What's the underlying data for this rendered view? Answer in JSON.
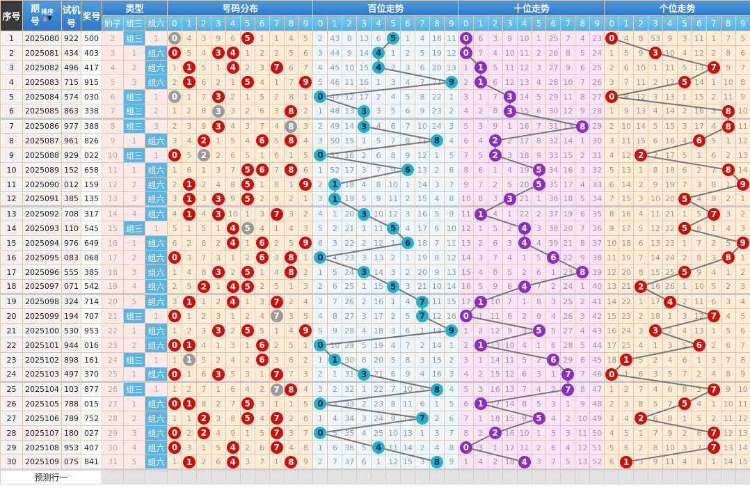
{
  "header": {
    "seq": "序号",
    "issue_1": "期",
    "issue_2": "号",
    "sort": "排序",
    "trial_1": "试机",
    "trial_2": "号",
    "prize": "奖号",
    "type": "类型",
    "type_sub": [
      "豹子",
      "组三",
      "组六"
    ],
    "groups": [
      "号码分布",
      "百位走势",
      "十位走势",
      "个位走势"
    ],
    "digits": [
      "0",
      "1",
      "2",
      "3",
      "4",
      "5",
      "6",
      "7",
      "8",
      "9"
    ]
  },
  "rows": [
    {
      "seq": "1",
      "issue": "2025080",
      "trial": "922",
      "prize": "500"
    },
    {
      "seq": "2",
      "issue": "2025081",
      "trial": "434",
      "prize": "403"
    },
    {
      "seq": "3",
      "issue": "2025082",
      "trial": "496",
      "prize": "417"
    },
    {
      "seq": "4",
      "issue": "2025083",
      "trial": "715",
      "prize": "915"
    },
    {
      "seq": "5",
      "issue": "2025084",
      "trial": "574",
      "prize": "030"
    },
    {
      "seq": "6",
      "issue": "2025085",
      "trial": "863",
      "prize": "338"
    },
    {
      "seq": "7",
      "issue": "2025086",
      "trial": "977",
      "prize": "388"
    },
    {
      "seq": "8",
      "issue": "2025087",
      "trial": "961",
      "prize": "826"
    },
    {
      "seq": "9",
      "issue": "2025088",
      "trial": "929",
      "prize": "022"
    },
    {
      "seq": "10",
      "issue": "2025089",
      "trial": "152",
      "prize": "658"
    },
    {
      "seq": "11",
      "issue": "2025090",
      "trial": "012",
      "prize": "159"
    },
    {
      "seq": "12",
      "issue": "2025091",
      "trial": "385",
      "prize": "135"
    },
    {
      "seq": "13",
      "issue": "2025092",
      "trial": "708",
      "prize": "317"
    },
    {
      "seq": "14",
      "issue": "2025093",
      "trial": "110",
      "prize": "545"
    },
    {
      "seq": "15",
      "issue": "2025094",
      "trial": "976",
      "prize": "649"
    },
    {
      "seq": "16",
      "issue": "2025095",
      "trial": "083",
      "prize": "068"
    },
    {
      "seq": "17",
      "issue": "2025096",
      "trial": "555",
      "prize": "385"
    },
    {
      "seq": "18",
      "issue": "2025097",
      "trial": "071",
      "prize": "542"
    },
    {
      "seq": "19",
      "issue": "2025098",
      "trial": "324",
      "prize": "714"
    },
    {
      "seq": "20",
      "issue": "2025099",
      "trial": "194",
      "prize": "707"
    },
    {
      "seq": "21",
      "issue": "2025100",
      "trial": "530",
      "prize": "953"
    },
    {
      "seq": "22",
      "issue": "2025101",
      "trial": "944",
      "prize": "016"
    },
    {
      "seq": "23",
      "issue": "2025102",
      "trial": "898",
      "prize": "161"
    },
    {
      "seq": "24",
      "issue": "2025103",
      "trial": "497",
      "prize": "370"
    },
    {
      "seq": "25",
      "issue": "2025104",
      "trial": "103",
      "prize": "877"
    },
    {
      "seq": "26",
      "issue": "2025105",
      "trial": "788",
      "prize": "015"
    },
    {
      "seq": "27",
      "issue": "2025106",
      "trial": "789",
      "prize": "752"
    },
    {
      "seq": "28",
      "issue": "2025107",
      "trial": "180",
      "prize": "027"
    },
    {
      "seq": "29",
      "issue": "2025108",
      "trial": "953",
      "prize": "407"
    },
    {
      "seq": "30",
      "issue": "2025109",
      "trial": "075",
      "prize": "841"
    }
  ],
  "type_columns": {
    "baozi": [
      "2",
      "3",
      "4",
      "5",
      "6",
      "7",
      "8",
      "9",
      "10",
      "11",
      "12",
      "13",
      "14",
      "15",
      "16",
      "17",
      "18",
      "19",
      "20",
      "21",
      "22",
      "23",
      "24",
      "25",
      "26",
      "27",
      "28",
      "29",
      "30",
      "31"
    ],
    "zusan": [
      "组三",
      "1",
      "2",
      "3",
      "组三",
      "组三",
      "组三",
      "1",
      "组三",
      "1",
      "2",
      "3",
      "4",
      "组三",
      "1",
      "2",
      "3",
      "4",
      "5",
      "组三",
      "1",
      "2",
      "组三",
      "1",
      "组三",
      "1",
      "2",
      "3",
      "4",
      "5"
    ],
    "zuliu": [
      "1",
      "组六",
      "组六",
      "组六",
      "1",
      "2",
      "3",
      "组六",
      "1",
      "组六",
      "组六",
      "组六",
      "组六",
      "1",
      "组六",
      "组六",
      "组六",
      "组六",
      "组六",
      "1",
      "组六",
      "组六",
      "1",
      "组六",
      "1",
      "组六",
      "组六",
      "组六",
      "组六",
      "组六"
    ]
  },
  "distribution": {
    "columns": [
      [
        0,
        0,
        1,
        2,
        0,
        1,
        2,
        3,
        0,
        1,
        2,
        3,
        4,
        5,
        6,
        0,
        1,
        2,
        3,
        0,
        1,
        0,
        1,
        0,
        1,
        0,
        1,
        0,
        0,
        1
      ],
      [
        4,
        5,
        1,
        1,
        1,
        2,
        3,
        4,
        5,
        6,
        1,
        1,
        1,
        1,
        2,
        3,
        4,
        5,
        1,
        1,
        2,
        1,
        1,
        1,
        2,
        1,
        1,
        2,
        3,
        1
      ],
      [
        3,
        4,
        5,
        6,
        7,
        8,
        9,
        2,
        2,
        1,
        2,
        3,
        4,
        5,
        6,
        7,
        8,
        2,
        1,
        2,
        3,
        4,
        5,
        6,
        7,
        8,
        2,
        2,
        1,
        2
      ],
      [
        9,
        3,
        1,
        2,
        3,
        3,
        3,
        1,
        2,
        3,
        4,
        3,
        3,
        1,
        2,
        3,
        3,
        1,
        2,
        3,
        3,
        1,
        2,
        3,
        1,
        2,
        3,
        4,
        5,
        6
      ],
      [
        6,
        4,
        4,
        1,
        2,
        3,
        4,
        5,
        6,
        7,
        8,
        9,
        10,
        4,
        4,
        1,
        2,
        4,
        4,
        1,
        2,
        3,
        4,
        5,
        6,
        7,
        8,
        9,
        4,
        4
      ],
      [
        5,
        1,
        2,
        5,
        1,
        2,
        3,
        4,
        5,
        5,
        5,
        5,
        1,
        5,
        1,
        2,
        5,
        5,
        1,
        2,
        5,
        1,
        2,
        3,
        4,
        5,
        5,
        1,
        2,
        3
      ],
      [
        1,
        2,
        3,
        4,
        5,
        6,
        7,
        6,
        1,
        6,
        1,
        2,
        3,
        4,
        6,
        6,
        1,
        2,
        3,
        4,
        5,
        6,
        6,
        1,
        2,
        3,
        4,
        5,
        6,
        7
      ],
      [
        1,
        2,
        7,
        1,
        2,
        3,
        4,
        5,
        6,
        7,
        8,
        9,
        7,
        1,
        2,
        3,
        4,
        5,
        7,
        7,
        1,
        2,
        3,
        7,
        7,
        1,
        7,
        7,
        7,
        1
      ],
      [
        4,
        5,
        6,
        7,
        8,
        8,
        8,
        8,
        1,
        8,
        1,
        2,
        3,
        4,
        5,
        8,
        8,
        1,
        2,
        3,
        4,
        5,
        6,
        7,
        8,
        1,
        2,
        3,
        4,
        8
      ],
      [
        5,
        6,
        7,
        9,
        1,
        2,
        3,
        4,
        5,
        6,
        9,
        1,
        2,
        3,
        9,
        1,
        2,
        3,
        4,
        5,
        9,
        1,
        2,
        3,
        4,
        5,
        6,
        7,
        8,
        9
      ]
    ]
  },
  "hundreds": {
    "columns": [
      [
        2,
        3,
        4,
        5,
        0,
        1,
        2,
        3,
        0,
        1,
        2,
        3,
        4,
        5,
        6,
        0,
        1,
        2,
        3,
        4,
        5,
        0,
        1,
        2,
        3,
        0,
        1,
        0,
        1,
        2
      ],
      [
        43,
        44,
        45,
        46,
        47,
        48,
        49,
        50,
        51,
        52,
        1,
        1,
        1,
        2,
        3,
        4,
        5,
        6,
        7,
        8,
        9,
        10,
        1,
        1,
        2,
        3,
        4,
        5,
        6,
        7
      ],
      [
        8,
        9,
        10,
        11,
        12,
        13,
        14,
        15,
        16,
        17,
        18,
        19,
        20,
        21,
        22,
        23,
        24,
        25,
        26,
        27,
        28,
        29,
        30,
        31,
        32,
        33,
        34,
        35,
        36,
        37
      ],
      [
        13,
        14,
        15,
        16,
        17,
        3,
        3,
        1,
        2,
        3,
        4,
        5,
        3,
        1,
        2,
        3,
        3,
        1,
        2,
        3,
        4,
        5,
        6,
        3,
        1,
        2,
        3,
        4,
        5,
        6
      ],
      [
        6,
        4,
        4,
        1,
        2,
        3,
        4,
        5,
        6,
        7,
        8,
        9,
        10,
        11,
        12,
        13,
        14,
        15,
        16,
        17,
        18,
        19,
        20,
        21,
        22,
        23,
        24,
        25,
        4,
        1
      ],
      [
        5,
        1,
        2,
        3,
        4,
        5,
        6,
        7,
        8,
        9,
        10,
        11,
        12,
        5,
        1,
        2,
        3,
        5,
        1,
        2,
        3,
        4,
        5,
        6,
        7,
        8,
        9,
        10,
        11,
        12
      ],
      [
        1,
        2,
        3,
        4,
        5,
        6,
        7,
        8,
        9,
        6,
        1,
        2,
        3,
        4,
        6,
        1,
        2,
        3,
        4,
        5,
        6,
        7,
        8,
        9,
        10,
        11,
        12,
        13,
        14,
        15
      ],
      [
        4,
        5,
        6,
        7,
        8,
        9,
        10,
        11,
        12,
        13,
        14,
        15,
        16,
        17,
        18,
        19,
        20,
        21,
        7,
        7,
        1,
        2,
        3,
        4,
        5,
        6,
        7,
        1,
        2,
        3
      ],
      [
        18,
        19,
        20,
        21,
        22,
        23,
        24,
        8,
        1,
        2,
        3,
        4,
        5,
        6,
        7,
        8,
        9,
        10,
        11,
        12,
        13,
        14,
        15,
        16,
        8,
        1,
        2,
        3,
        4,
        8
      ],
      [
        11,
        12,
        13,
        9,
        1,
        2,
        3,
        4,
        5,
        6,
        7,
        8,
        9,
        10,
        11,
        12,
        13,
        14,
        15,
        16,
        9,
        1,
        2,
        3,
        4,
        5,
        6,
        7,
        8,
        9
      ]
    ]
  },
  "tens": {
    "columns": [
      [
        0,
        0,
        1,
        2,
        3,
        4,
        5,
        6,
        7,
        8,
        9,
        10,
        11,
        12,
        13,
        14,
        15,
        16,
        17,
        0,
        1,
        2,
        3,
        4,
        5,
        6,
        7,
        8,
        0,
        1
      ],
      [
        6,
        7,
        1,
        1,
        1,
        2,
        3,
        4,
        5,
        6,
        7,
        8,
        1,
        1,
        2,
        3,
        4,
        5,
        1,
        1,
        2,
        1,
        1,
        2,
        3,
        1,
        1,
        2,
        3,
        4
      ],
      [
        3,
        4,
        5,
        6,
        7,
        8,
        9,
        2,
        2,
        1,
        2,
        3,
        4,
        5,
        6,
        7,
        8,
        9,
        10,
        11,
        12,
        13,
        14,
        15,
        16,
        17,
        18,
        2,
        1,
        2
      ],
      [
        9,
        10,
        11,
        12,
        3,
        3,
        1,
        2,
        3,
        4,
        5,
        3,
        1,
        2,
        3,
        4,
        5,
        6,
        7,
        8,
        9,
        10,
        11,
        12,
        13,
        14,
        15,
        16,
        17,
        18
      ],
      [
        10,
        11,
        12,
        13,
        14,
        15,
        16,
        17,
        18,
        19,
        20,
        21,
        22,
        4,
        4,
        1,
        2,
        4,
        1,
        2,
        3,
        4,
        5,
        6,
        7,
        8,
        9,
        10,
        11,
        4
      ],
      [
        1,
        2,
        3,
        4,
        5,
        6,
        7,
        8,
        9,
        5,
        5,
        1,
        2,
        3,
        4,
        5,
        6,
        7,
        8,
        9,
        5,
        1,
        2,
        3,
        4,
        5,
        5,
        1,
        2,
        3
      ],
      [
        25,
        26,
        27,
        28,
        29,
        30,
        31,
        32,
        33,
        34,
        35,
        36,
        37,
        38,
        39,
        6,
        1,
        2,
        3,
        4,
        5,
        6,
        6,
        1,
        2,
        3,
        4,
        5,
        6,
        7
      ],
      [
        7,
        8,
        9,
        10,
        11,
        12,
        13,
        14,
        15,
        16,
        17,
        18,
        19,
        20,
        21,
        22,
        23,
        24,
        25,
        26,
        27,
        28,
        29,
        7,
        7,
        1,
        2,
        3,
        4,
        5
      ],
      [
        4,
        5,
        6,
        7,
        8,
        9,
        8,
        1,
        2,
        3,
        4,
        5,
        6,
        7,
        8,
        9,
        8,
        1,
        2,
        3,
        4,
        5,
        6,
        7,
        8,
        9,
        10,
        11,
        12,
        13
      ],
      [
        23,
        24,
        25,
        26,
        27,
        28,
        29,
        30,
        31,
        32,
        33,
        34,
        35,
        36,
        37,
        38,
        39,
        40,
        41,
        42,
        43,
        44,
        45,
        46,
        47,
        48,
        49,
        50,
        51,
        52
      ]
    ]
  },
  "units": {
    "columns": [
      [
        0,
        1,
        2,
        3,
        0,
        1,
        2,
        3,
        4,
        5,
        6,
        7,
        8,
        9,
        10,
        11,
        12,
        13,
        14,
        15,
        16,
        17,
        18,
        0,
        1,
        2,
        3,
        4,
        5,
        6
      ],
      [
        4,
        5,
        6,
        7,
        8,
        9,
        10,
        11,
        12,
        13,
        14,
        15,
        16,
        17,
        18,
        19,
        20,
        21,
        22,
        23,
        24,
        25,
        1,
        1,
        2,
        3,
        4,
        5,
        6,
        1
      ],
      [
        8,
        9,
        10,
        11,
        12,
        13,
        14,
        15,
        2,
        1,
        2,
        3,
        4,
        5,
        6,
        7,
        8,
        2,
        1,
        2,
        3,
        4,
        5,
        6,
        7,
        8,
        2,
        1,
        2,
        3
      ],
      [
        53,
        3,
        1,
        2,
        3,
        4,
        5,
        6,
        7,
        8,
        9,
        10,
        11,
        12,
        13,
        14,
        15,
        16,
        17,
        18,
        3,
        1,
        2,
        3,
        4,
        5,
        6,
        7,
        8,
        9
      ],
      [
        9,
        10,
        11,
        12,
        13,
        14,
        15,
        16,
        17,
        18,
        19,
        20,
        21,
        22,
        23,
        24,
        25,
        26,
        4,
        1,
        2,
        3,
        4,
        5,
        6,
        7,
        8,
        9,
        10,
        11
      ],
      [
        3,
        4,
        5,
        5,
        1,
        2,
        3,
        4,
        5,
        6,
        7,
        5,
        1,
        5,
        1,
        2,
        5,
        1,
        2,
        3,
        4,
        5,
        6,
        7,
        8,
        5,
        1,
        2,
        3,
        4
      ],
      [
        11,
        12,
        13,
        14,
        15,
        16,
        17,
        6,
        1,
        2,
        3,
        4,
        5,
        6,
        7,
        8,
        9,
        10,
        11,
        12,
        13,
        6,
        1,
        2,
        3,
        4,
        5,
        6,
        7,
        8
      ],
      [
        1,
        2,
        7,
        1,
        2,
        3,
        4,
        5,
        6,
        7,
        8,
        9,
        7,
        1,
        2,
        3,
        4,
        5,
        6,
        7,
        1,
        2,
        3,
        4,
        7,
        1,
        2,
        7,
        7,
        1
      ],
      [
        7,
        8,
        9,
        10,
        11,
        8,
        8,
        1,
        2,
        8,
        1,
        2,
        3,
        4,
        5,
        8,
        1,
        2,
        3,
        4,
        5,
        6,
        7,
        8,
        9,
        10,
        11,
        12,
        13,
        14
      ],
      [
        5,
        6,
        7,
        8,
        9,
        10,
        11,
        12,
        13,
        14,
        9,
        1,
        2,
        3,
        9,
        1,
        2,
        3,
        4,
        5,
        6,
        7,
        8,
        9,
        10,
        11,
        12,
        13,
        14,
        15
      ]
    ]
  },
  "footer": {
    "predict": "预测行一"
  },
  "colors": {
    "header": "#2a78c8",
    "subheader": "#5ab4e6",
    "hit_red": "#d20a0a",
    "repeat_gray": "#9b9b9b",
    "hundreds_ball": "#21b2cb",
    "tens_ball": "#8a2cc7",
    "trend_line": "#777777",
    "dist_bg": "#fdebd3",
    "hundreds_bg": "#eef5fb",
    "tens_bg": "#fbe3f7",
    "units_bg": "#fdebd3"
  }
}
